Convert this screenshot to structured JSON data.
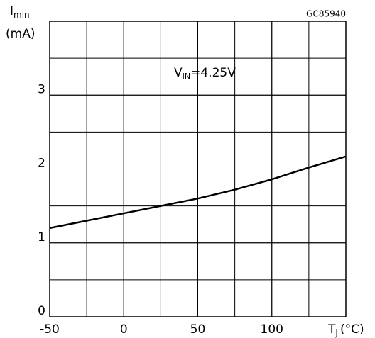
{
  "chart_data": {
    "type": "line",
    "code": "GC85940",
    "y_label": {
      "main": "I",
      "sub": "min",
      "unit": "(mA)"
    },
    "x_label": {
      "main": "T",
      "sub": "J",
      "unit": "(°C)"
    },
    "annotation": {
      "main": "V",
      "sub": "IN",
      "rest": "=4.25V"
    },
    "x": [
      -50,
      -25,
      0,
      25,
      50,
      75,
      100,
      125,
      150
    ],
    "values": [
      1.2,
      1.3,
      1.4,
      1.5,
      1.6,
      1.72,
      1.86,
      2.02,
      2.17
    ],
    "color": "#000000",
    "xlim": [
      -50,
      150
    ],
    "xticks": [
      -50,
      0,
      50,
      100
    ],
    "ylim": [
      0,
      4
    ],
    "yticks": [
      0,
      1,
      2,
      3
    ],
    "grid": true
  }
}
